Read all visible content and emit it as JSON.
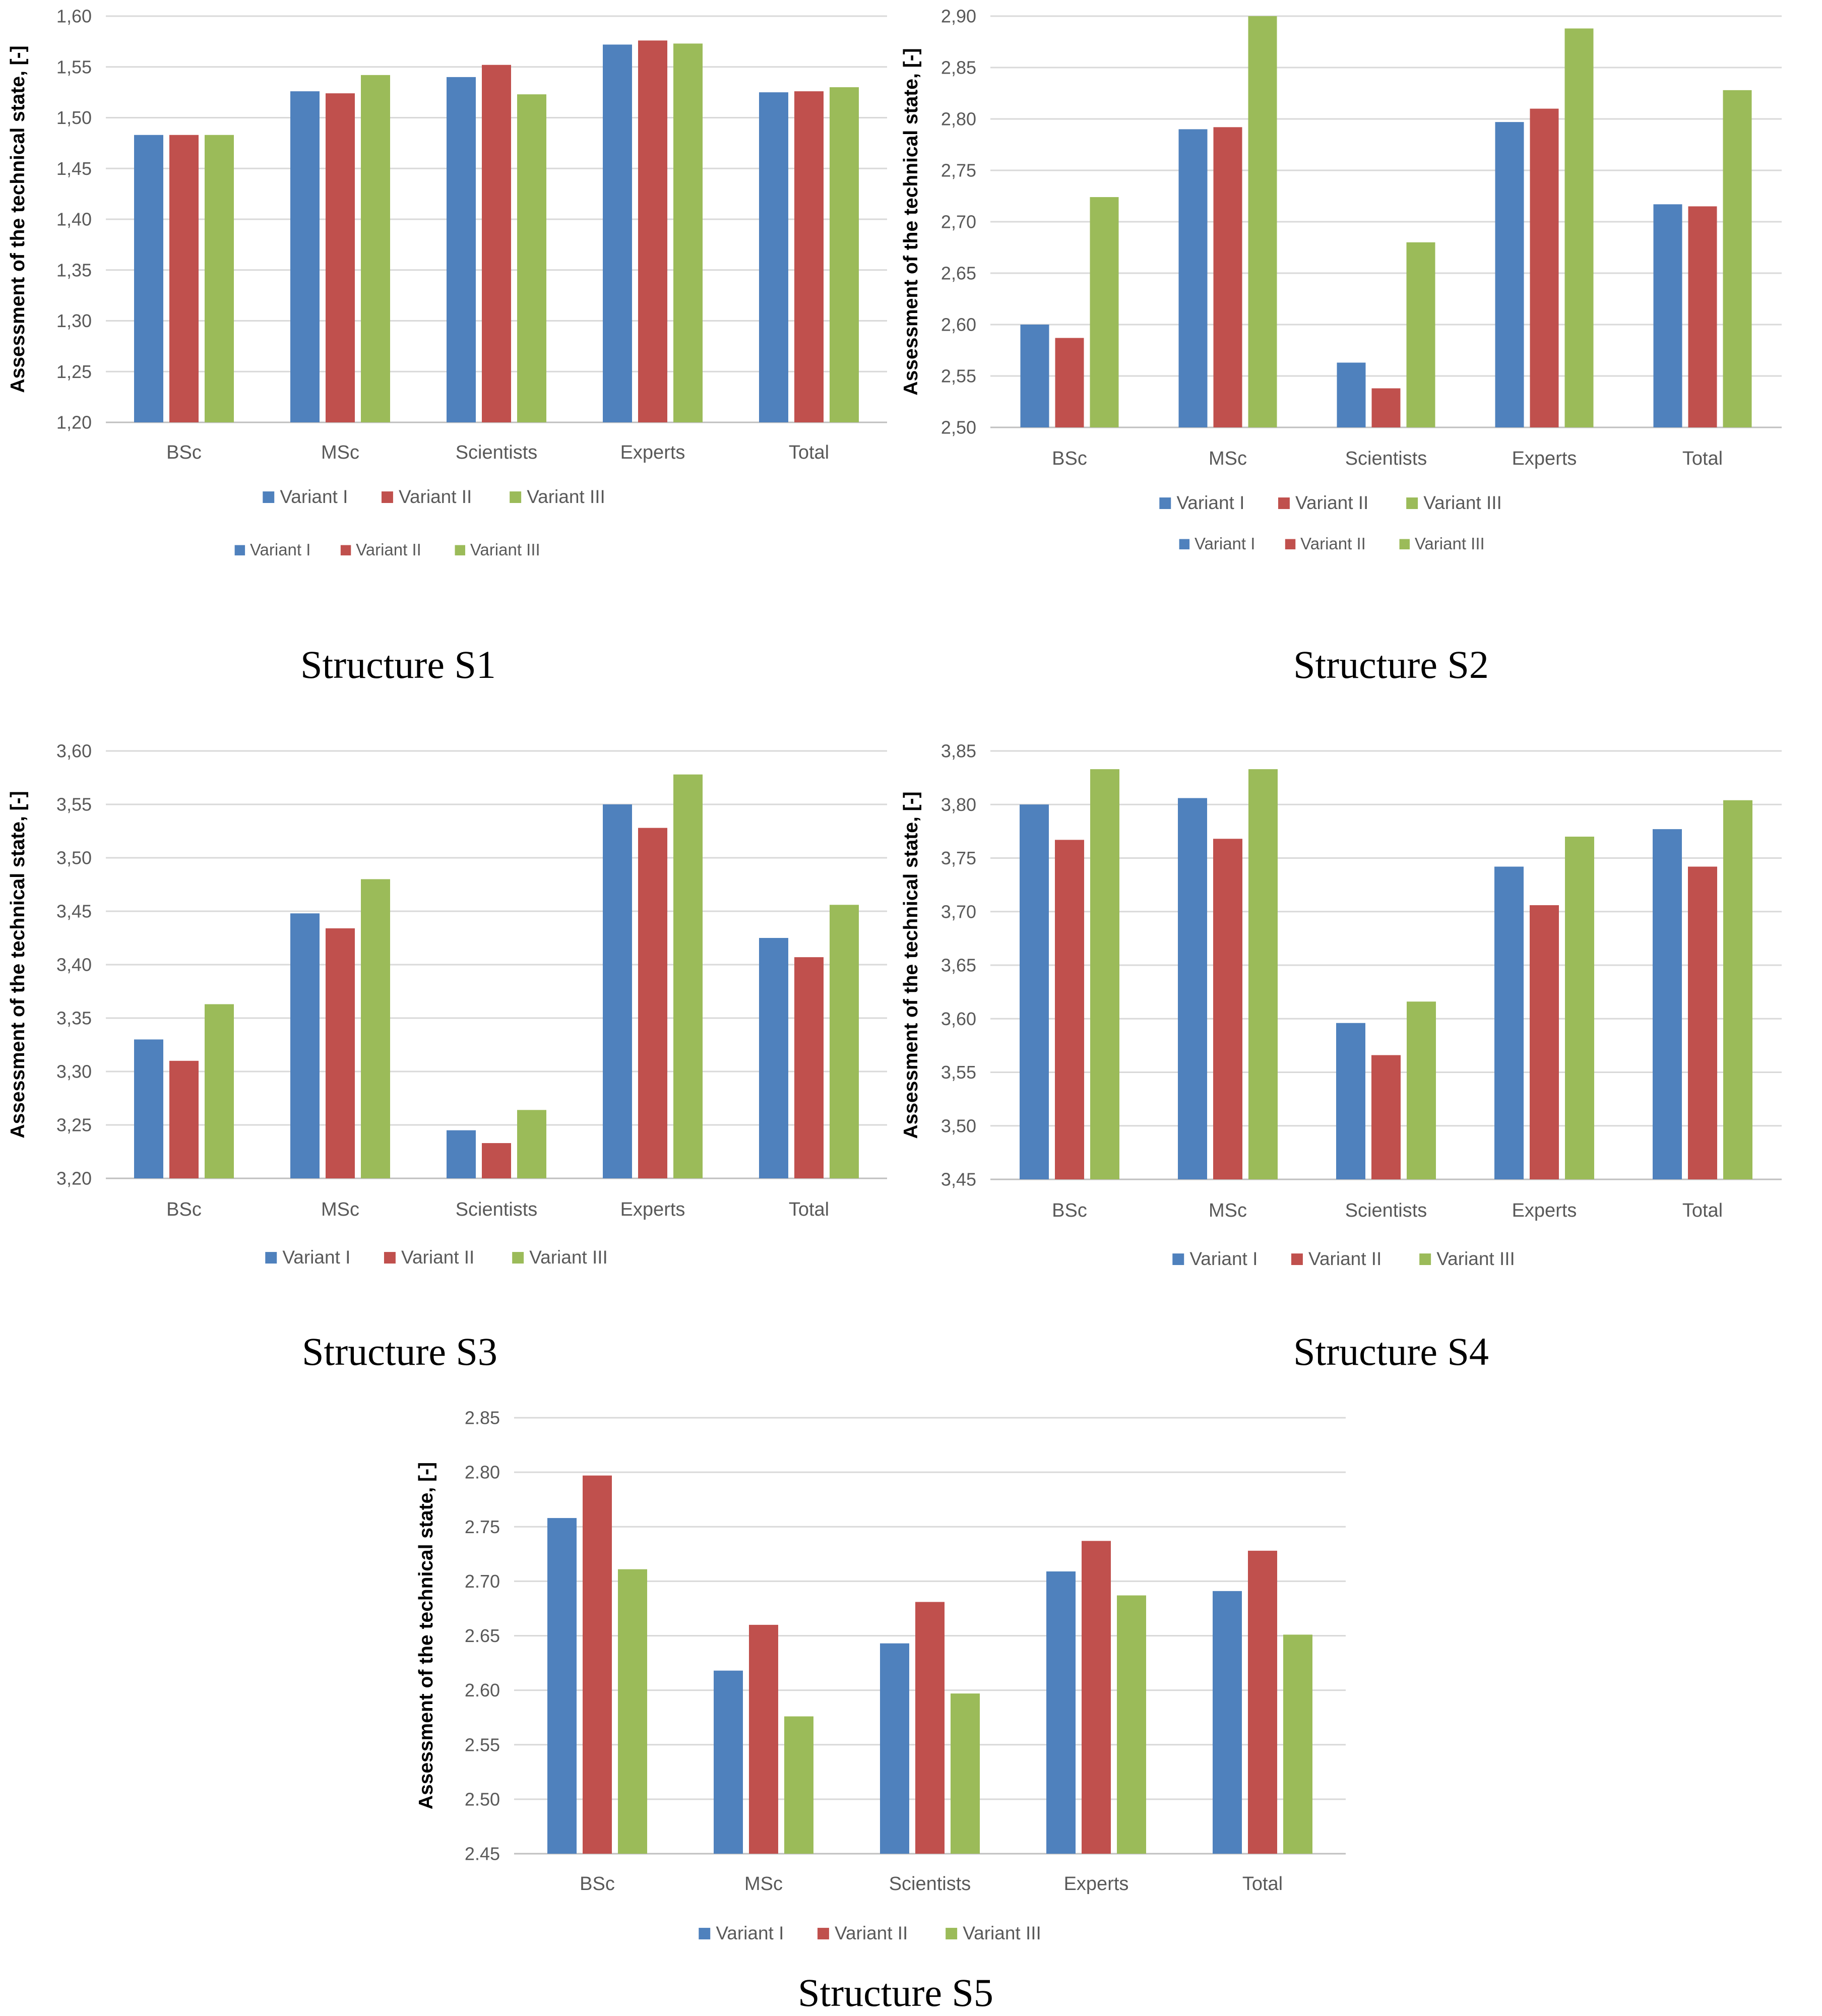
{
  "colors": {
    "Variant I": "#4f81bd",
    "Variant II": "#c0504d",
    "Variant III": "#9bbb59"
  },
  "captions": [
    "Structure S1",
    "Structure S2",
    "Structure S3",
    "Structure S4",
    "Structure S5"
  ],
  "chart_data": [
    {
      "type": "bar",
      "caption": "Structure S1",
      "ylabel": "Assessment of the technical state, [-]",
      "categories": [
        "BSc",
        "MSc",
        "Scientists",
        "Experts",
        "Total"
      ],
      "yticks": [
        "1,20",
        "1,25",
        "1,30",
        "1,35",
        "1,40",
        "1,45",
        "1,50",
        "1,55",
        "1,60"
      ],
      "ylim": [
        1.2,
        1.6
      ],
      "series": [
        {
          "name": "Variant I",
          "values": [
            1.483,
            1.526,
            1.54,
            1.572,
            1.525
          ]
        },
        {
          "name": "Variant II",
          "values": [
            1.483,
            1.524,
            1.552,
            1.576,
            1.526
          ]
        },
        {
          "name": "Variant III",
          "values": [
            1.483,
            1.542,
            1.523,
            1.573,
            1.53
          ]
        }
      ],
      "legends": [
        [
          "Variant I",
          "Variant II",
          "Variant III"
        ],
        [
          "Variant I",
          "Variant II",
          "Variant III"
        ]
      ],
      "grid": true,
      "legend_position": "bottom"
    },
    {
      "type": "bar",
      "caption": "Structure S2",
      "ylabel": "Assessment of the technical state, [-]",
      "categories": [
        "BSc",
        "MSc",
        "Scientists",
        "Experts",
        "Total"
      ],
      "yticks": [
        "2,50",
        "2,55",
        "2,60",
        "2,65",
        "2,70",
        "2,75",
        "2,80",
        "2,85",
        "2,90"
      ],
      "ylim": [
        2.5,
        2.9
      ],
      "series": [
        {
          "name": "Variant I",
          "values": [
            2.6,
            2.79,
            2.563,
            2.797,
            2.717
          ]
        },
        {
          "name": "Variant II",
          "values": [
            2.587,
            2.792,
            2.538,
            2.81,
            2.715
          ]
        },
        {
          "name": "Variant III",
          "values": [
            2.724,
            2.9,
            2.68,
            2.888,
            2.828
          ]
        }
      ],
      "legends": [
        [
          "Variant I",
          "Variant II",
          "Variant III"
        ],
        [
          "Variant I",
          "Variant II",
          "Variant III"
        ]
      ],
      "grid": true,
      "legend_position": "bottom"
    },
    {
      "type": "bar",
      "caption": "Structure S3",
      "ylabel": "Assessment of the technical state, [-]",
      "categories": [
        "BSc",
        "MSc",
        "Scientists",
        "Experts",
        "Total"
      ],
      "yticks": [
        "3,20",
        "3,25",
        "3,30",
        "3,35",
        "3,40",
        "3,45",
        "3,50",
        "3,55",
        "3,60"
      ],
      "ylim": [
        3.2,
        3.6
      ],
      "series": [
        {
          "name": "Variant I",
          "values": [
            3.33,
            3.448,
            3.245,
            3.55,
            3.425
          ]
        },
        {
          "name": "Variant II",
          "values": [
            3.31,
            3.434,
            3.233,
            3.528,
            3.407
          ]
        },
        {
          "name": "Variant III",
          "values": [
            3.363,
            3.48,
            3.264,
            3.578,
            3.456
          ]
        }
      ],
      "legends": [
        [
          "Variant I",
          "Variant II",
          "Variant III"
        ]
      ],
      "grid": true,
      "legend_position": "bottom"
    },
    {
      "type": "bar",
      "caption": "Structure S4",
      "ylabel": "Assessment of the technical state, [-]",
      "categories": [
        "BSc",
        "MSc",
        "Scientists",
        "Experts",
        "Total"
      ],
      "yticks": [
        "3,45",
        "3,50",
        "3,55",
        "3,60",
        "3,65",
        "3,70",
        "3,75",
        "3,80",
        "3,85"
      ],
      "ylim": [
        3.45,
        3.85
      ],
      "series": [
        {
          "name": "Variant I",
          "values": [
            3.8,
            3.806,
            3.596,
            3.742,
            3.777
          ]
        },
        {
          "name": "Variant II",
          "values": [
            3.767,
            3.768,
            3.566,
            3.706,
            3.742
          ]
        },
        {
          "name": "Variant III",
          "values": [
            3.833,
            3.833,
            3.616,
            3.77,
            3.804
          ]
        }
      ],
      "legends": [
        [
          "Variant I",
          "Variant II",
          "Variant III"
        ]
      ],
      "grid": true,
      "legend_position": "bottom"
    },
    {
      "type": "bar",
      "caption": "Structure S5",
      "ylabel": "Assessment of the technical state, [-]",
      "categories": [
        "BSc",
        "MSc",
        "Scientists",
        "Experts",
        "Total"
      ],
      "yticks": [
        "2.45",
        "2.50",
        "2.55",
        "2.60",
        "2.65",
        "2.70",
        "2.75",
        "2.80",
        "2.85"
      ],
      "ylim": [
        2.45,
        2.85
      ],
      "series": [
        {
          "name": "Variant I",
          "values": [
            2.758,
            2.618,
            2.643,
            2.709,
            2.691
          ]
        },
        {
          "name": "Variant II",
          "values": [
            2.797,
            2.66,
            2.681,
            2.737,
            2.728
          ]
        },
        {
          "name": "Variant III",
          "values": [
            2.711,
            2.576,
            2.597,
            2.687,
            2.651
          ]
        }
      ],
      "legends": [
        [
          "Variant I",
          "Variant II",
          "Variant III"
        ]
      ],
      "grid": true,
      "legend_position": "bottom"
    }
  ]
}
